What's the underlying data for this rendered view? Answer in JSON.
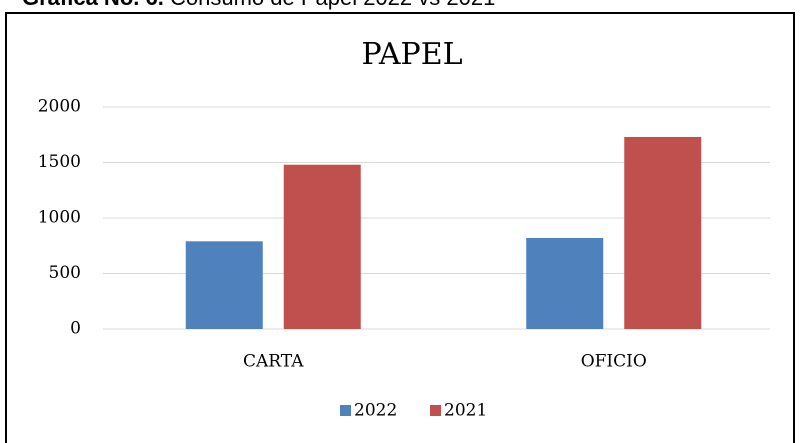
{
  "caption": {
    "label": "Gráfica No. 6.",
    "text": "Consumo de Papel 2022 vs 2021"
  },
  "chart_data": {
    "type": "bar",
    "title": "PAPEL",
    "categories": [
      "CARTA",
      "OFICIO"
    ],
    "series": [
      {
        "name": "2022",
        "color": "#4f81bd",
        "values": [
          790,
          820
        ]
      },
      {
        "name": "2021",
        "color": "#c0504d",
        "values": [
          1480,
          1730
        ]
      }
    ],
    "ylim": [
      0,
      2000
    ],
    "yticks": [
      0,
      500,
      1000,
      1500,
      2000
    ],
    "grid": true,
    "legend": "bottom"
  }
}
